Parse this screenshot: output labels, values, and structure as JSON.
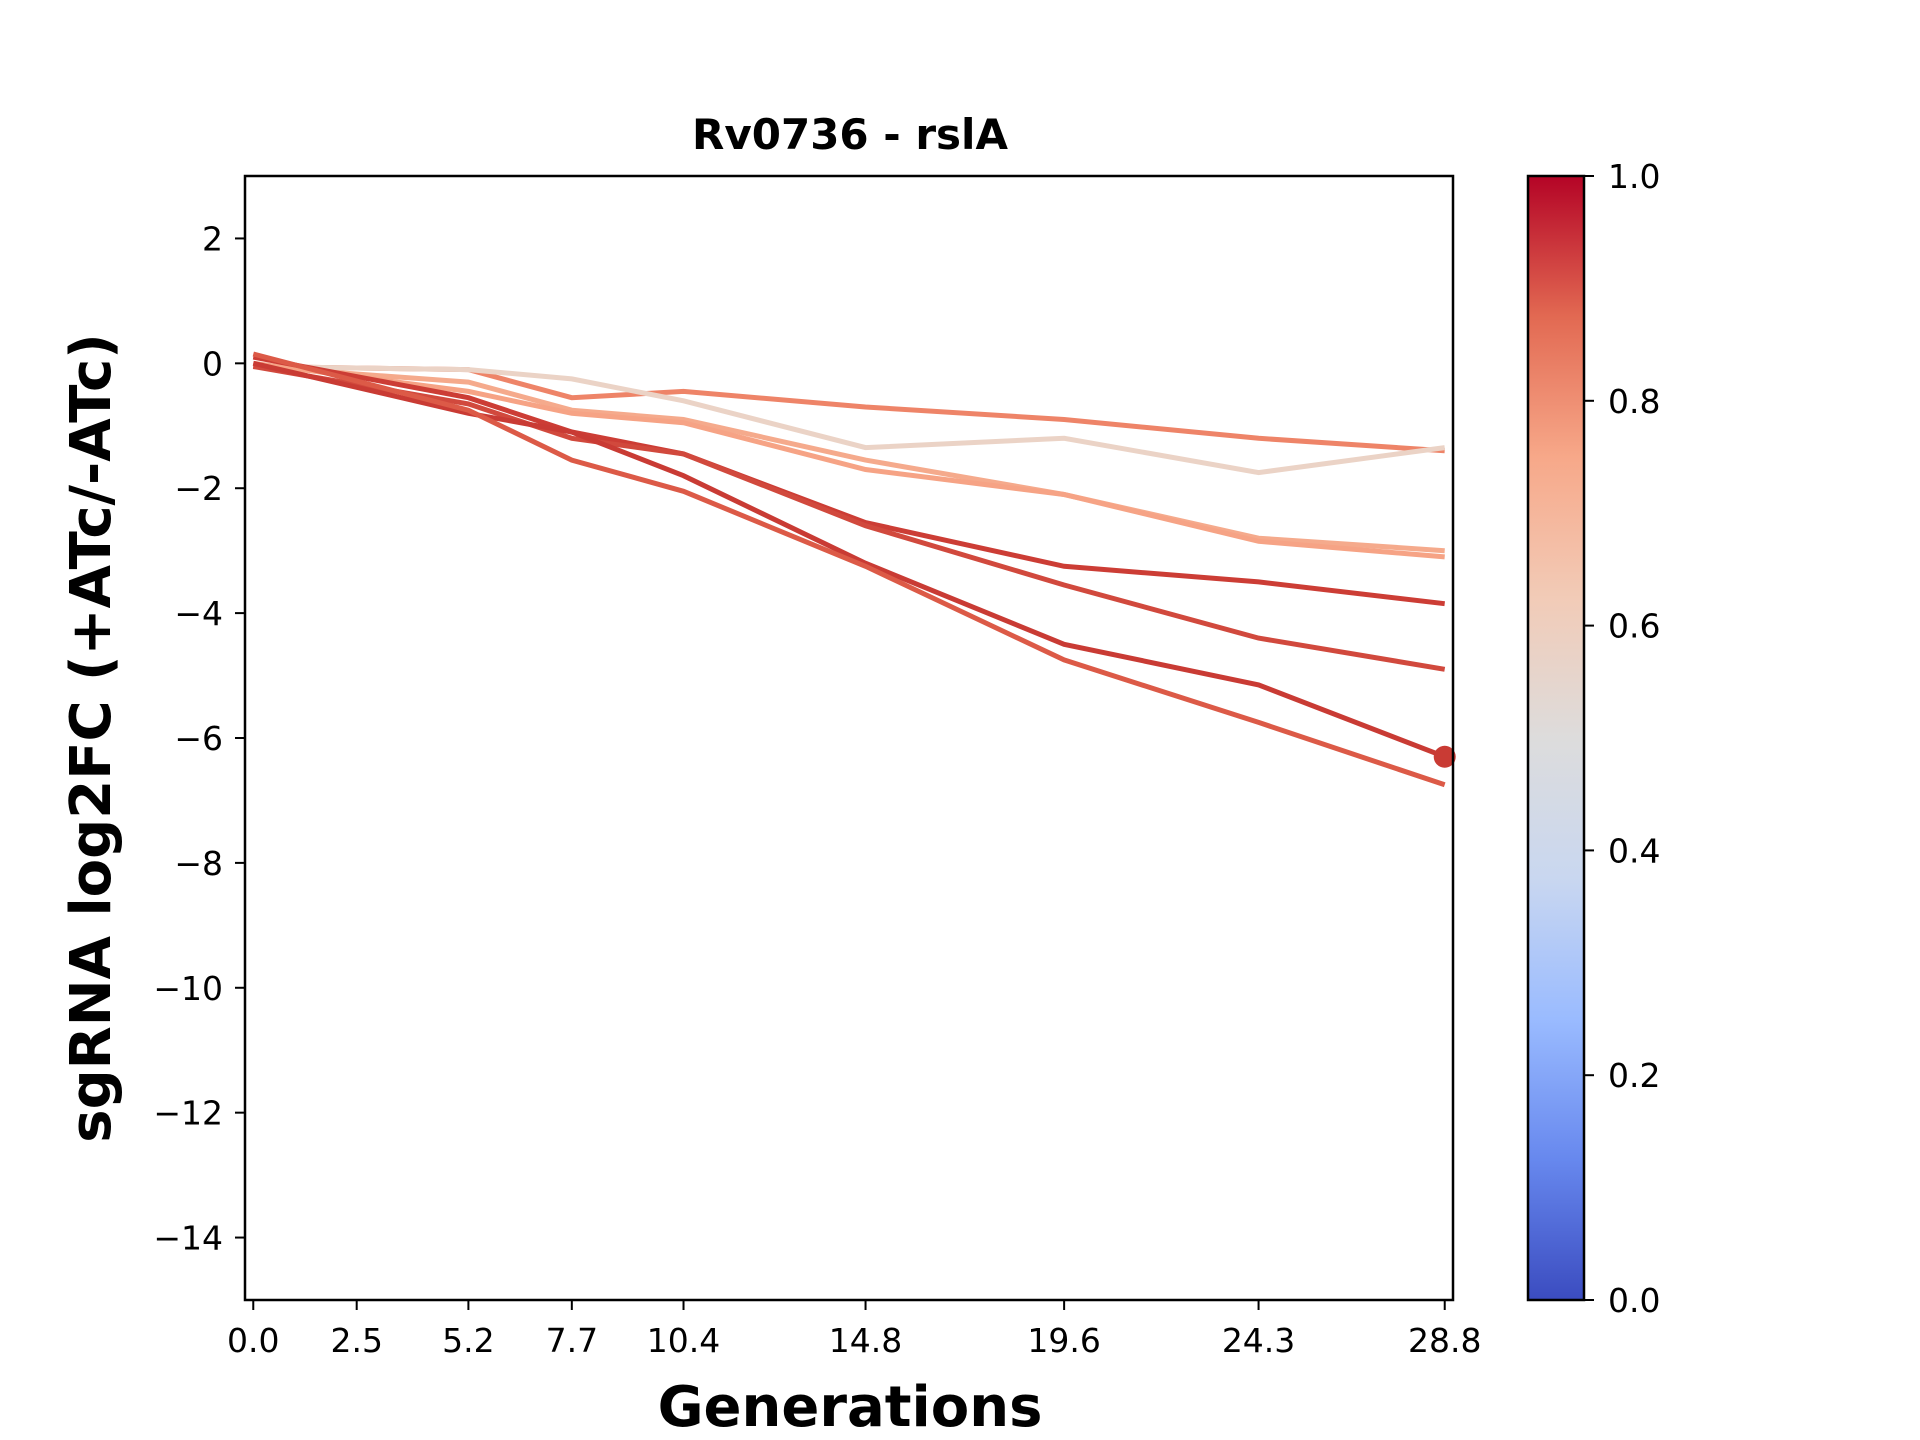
{
  "chart_data": {
    "type": "line",
    "title": "Rv0736 - rslA",
    "xlabel": "Generations",
    "ylabel": "sgRNA log2FC (+ATc/-ATc)",
    "x_ticks": [
      "0.0",
      "2.5",
      "5.2",
      "7.7",
      "10.4",
      "14.8",
      "19.6",
      "24.3",
      "28.8"
    ],
    "y_ticks": [
      2,
      0,
      -2,
      -4,
      -6,
      -8,
      -10,
      -12,
      -14
    ],
    "y_tick_labels": [
      "2",
      "0",
      "−2",
      "−4",
      "−6",
      "−8",
      "−10",
      "−12",
      "−14"
    ],
    "xlim": [
      -0.2,
      29.0
    ],
    "ylim": [
      -15,
      3
    ],
    "grid": false,
    "colormap": "coolwarm",
    "colorbar": {
      "range": [
        0,
        1
      ],
      "ticks": [
        0.0,
        0.2,
        0.4,
        0.6,
        0.8,
        1.0
      ],
      "tick_labels": [
        "0.0",
        "0.2",
        "0.4",
        "0.6",
        "0.8",
        "1.0"
      ],
      "stops": [
        "#3b4cc0",
        "#6788ee",
        "#9abbff",
        "#c9d7f0",
        "#dddcdc",
        "#f2cbb7",
        "#f7a889",
        "#e26952",
        "#b40426"
      ]
    },
    "series": [
      {
        "color": "#ee8468",
        "x": [
          0.0,
          5.2,
          7.7,
          10.4,
          14.8,
          19.6,
          24.3,
          28.8
        ],
        "y": [
          -0.05,
          -0.1,
          -0.55,
          -0.45,
          -0.7,
          -0.9,
          -1.2,
          -1.4
        ]
      },
      {
        "color": "#ebd3c6",
        "x": [
          0.0,
          5.2,
          7.7,
          10.4,
          14.8,
          19.6,
          24.3,
          28.8
        ],
        "y": [
          -0.05,
          -0.1,
          -0.25,
          -0.6,
          -1.35,
          -1.2,
          -1.75,
          -1.35
        ]
      },
      {
        "color": "#f5aa8c",
        "x": [
          0.0,
          5.2,
          7.7,
          10.4,
          14.8,
          19.6,
          24.3,
          28.8
        ],
        "y": [
          -0.05,
          -0.3,
          -0.75,
          -0.9,
          -1.55,
          -2.1,
          -2.8,
          -3.0
        ]
      },
      {
        "color": "#f6a385",
        "x": [
          0.0,
          5.2,
          7.7,
          10.4,
          14.8,
          19.6,
          24.3,
          28.8
        ],
        "y": [
          0.0,
          -0.45,
          -0.8,
          -0.95,
          -1.7,
          -2.1,
          -2.85,
          -3.1
        ]
      },
      {
        "color": "#cc3d35",
        "x": [
          0.0,
          5.2,
          7.7,
          10.4,
          14.8,
          19.6,
          24.3,
          28.8
        ],
        "y": [
          0.1,
          -0.55,
          -1.1,
          -1.45,
          -2.55,
          -3.25,
          -3.5,
          -3.85
        ]
      },
      {
        "color": "#d1493d",
        "x": [
          0.0,
          5.2,
          7.7,
          10.4,
          14.8,
          19.6,
          24.3,
          28.8
        ],
        "y": [
          -0.05,
          -0.65,
          -1.2,
          -1.45,
          -2.6,
          -3.55,
          -4.4,
          -4.9
        ]
      },
      {
        "color": "#c93b34",
        "x": [
          0.0,
          5.2,
          7.7,
          10.4,
          14.8,
          19.6,
          24.3,
          28.8
        ],
        "y": [
          0.0,
          -0.8,
          -1.1,
          -1.8,
          -3.2,
          -4.5,
          -5.15,
          -6.3
        ]
      },
      {
        "color": "#dc5a47",
        "x": [
          0.0,
          5.2,
          7.7,
          10.4,
          14.8,
          19.6,
          24.3,
          28.8
        ],
        "y": [
          0.15,
          -0.75,
          -1.55,
          -2.05,
          -3.25,
          -4.75,
          -5.75,
          -6.75
        ]
      }
    ],
    "markers": [
      {
        "x": 28.8,
        "y": -6.3,
        "color": "#c93b34"
      }
    ]
  }
}
